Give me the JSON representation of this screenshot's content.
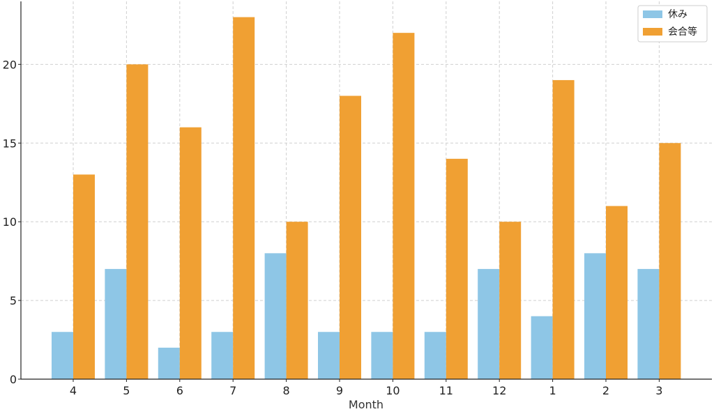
{
  "chart_data": {
    "type": "bar",
    "categories": [
      "4",
      "5",
      "6",
      "7",
      "8",
      "9",
      "10",
      "11",
      "12",
      "1",
      "2",
      "3"
    ],
    "series": [
      {
        "name": "休み",
        "values": [
          3,
          7,
          2,
          3,
          8,
          3,
          3,
          3,
          7,
          4,
          8,
          7
        ],
        "color": "#8ec6e6"
      },
      {
        "name": "会合等",
        "values": [
          13,
          20,
          16,
          23,
          10,
          18,
          22,
          14,
          10,
          19,
          11,
          15
        ],
        "color": "#f0a033"
      }
    ],
    "title": "",
    "xlabel": "Month",
    "ylabel": "",
    "ylim": [
      0,
      24
    ],
    "yticks": [
      0,
      5,
      10,
      15,
      20
    ],
    "grid": true,
    "legend_position": "top-right"
  }
}
